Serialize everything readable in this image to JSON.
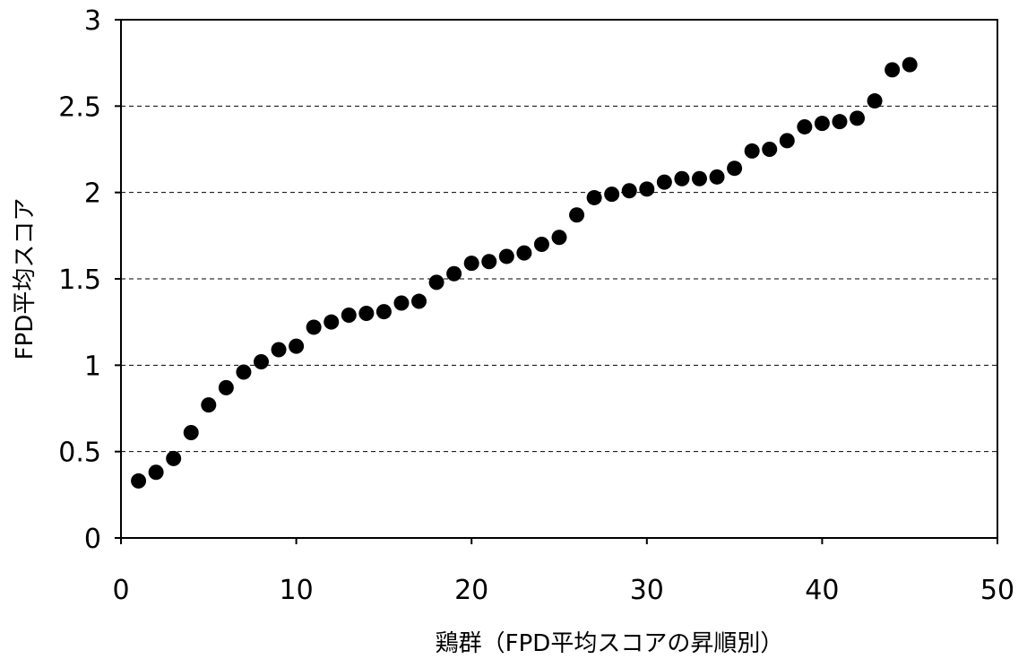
{
  "chart_data": {
    "type": "scatter",
    "title": "",
    "xlabel": "鶏群（FPD平均スコアの昇順別）",
    "ylabel": "FPD平均スコア",
    "xlim": [
      0,
      50
    ],
    "ylim": [
      0,
      3
    ],
    "x_ticks": [
      "0",
      "10",
      "20",
      "30",
      "40",
      "50"
    ],
    "y_ticks": [
      "0",
      "0.5",
      "1",
      "1.5",
      "2",
      "2.5",
      "3"
    ],
    "grid": "horizontal dashed",
    "legend": "none",
    "marker_color": "#000000",
    "series": [
      {
        "x": [
          1,
          2,
          3,
          4,
          5,
          6,
          7,
          8,
          9,
          10,
          11,
          12,
          13,
          14,
          15,
          16,
          17,
          18,
          19,
          20,
          21,
          22,
          23,
          24,
          25,
          26,
          27,
          28,
          29,
          30,
          31,
          32,
          33,
          34,
          35,
          36,
          37,
          38,
          39,
          40,
          41,
          42,
          43,
          44,
          45
        ],
        "y": [
          0.33,
          0.38,
          0.46,
          0.61,
          0.77,
          0.87,
          0.96,
          1.02,
          1.09,
          1.11,
          1.22,
          1.25,
          1.29,
          1.3,
          1.31,
          1.36,
          1.37,
          1.48,
          1.53,
          1.59,
          1.6,
          1.63,
          1.65,
          1.7,
          1.74,
          1.87,
          1.97,
          1.99,
          2.01,
          2.02,
          2.06,
          2.08,
          2.08,
          2.09,
          2.14,
          2.24,
          2.25,
          2.3,
          2.38,
          2.4,
          2.41,
          2.43,
          2.53,
          2.71,
          2.74
        ]
      }
    ]
  }
}
